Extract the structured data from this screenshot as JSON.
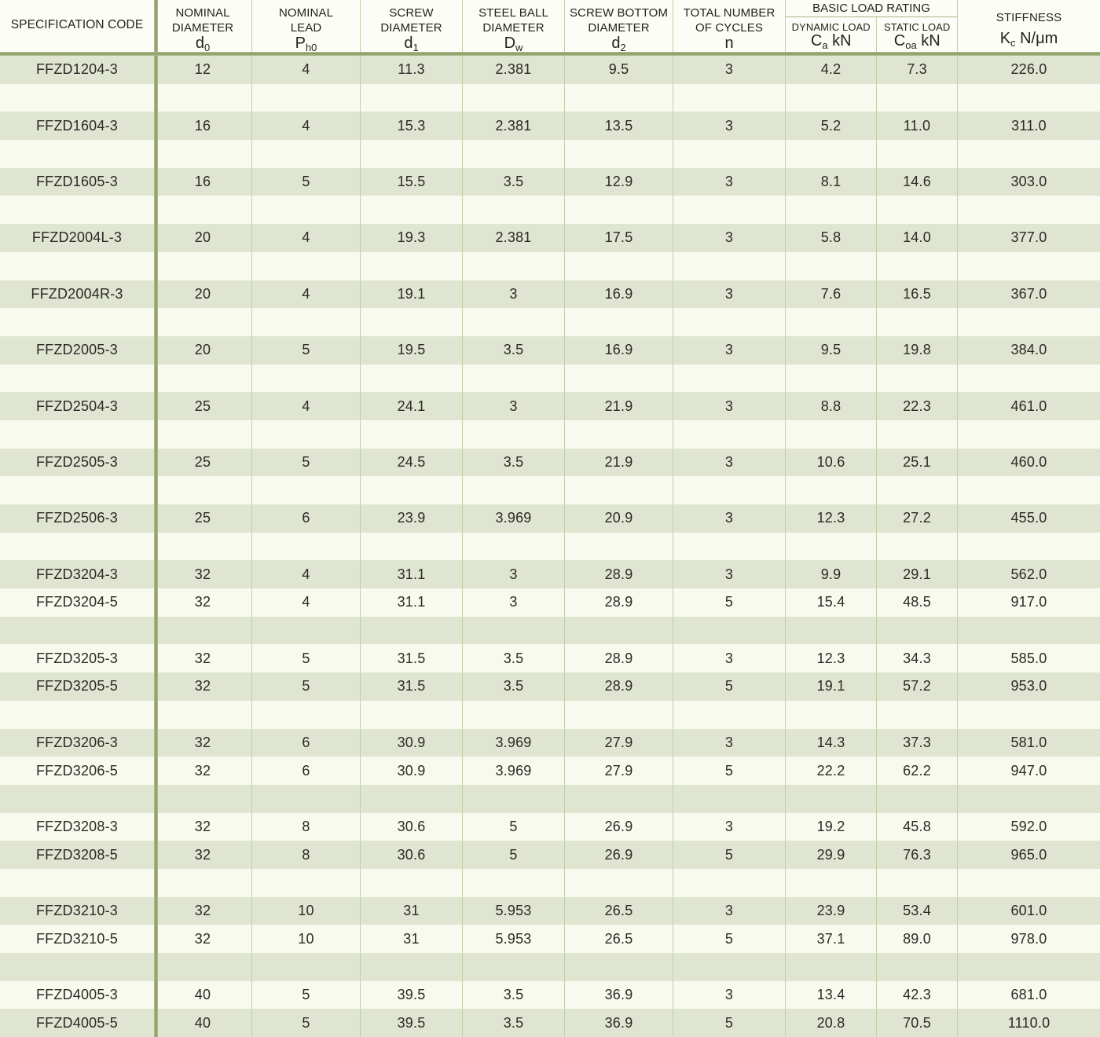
{
  "colors": {
    "row_green": "#dfe5d1",
    "row_cream": "#f9faef",
    "thin_divider": "#c3cfa9",
    "thick_line": "#87995e",
    "text": "#2b2a24"
  },
  "table": {
    "header": {
      "col1": "SPECIFICATION CODE",
      "col2": {
        "line1": "NOMINAL",
        "line2": "DIAMETER",
        "sym": "d",
        "sub": "0",
        "suffix": ""
      },
      "col3": {
        "line1": "NOMINAL",
        "line2": "LEAD",
        "sym": "P",
        "sub": "h0",
        "suffix": ""
      },
      "col4": {
        "line1": "SCREW",
        "line2": "DIAMETER",
        "sym": "d",
        "sub": "1",
        "suffix": ""
      },
      "col5": {
        "line1": "STEEL BALL",
        "line2": "DIAMETER",
        "sym": "D",
        "sub": "w",
        "suffix": ""
      },
      "col6": {
        "line1": "SCREW BOTTOM",
        "line2": "DIAMETER",
        "sym": "d",
        "sub": "2",
        "suffix": ""
      },
      "col7": {
        "line1": "TOTAL NUMBER",
        "line2": "OF CYCLES",
        "sym": "n",
        "sub": "",
        "suffix": ""
      },
      "group": {
        "label": "BASIC LOAD RATING",
        "dynamic": {
          "line1": "DYNAMIC LOAD",
          "sym": "C",
          "sub": "a",
          "suffix": " kN"
        },
        "static": {
          "line1": "STATIC LOAD",
          "sym": "C",
          "sub": "oa",
          "suffix": " kN"
        }
      },
      "col10": {
        "line1": "STIFFNESS",
        "sym": "K",
        "sub": "c",
        "suffix": " N/μm"
      }
    },
    "rows": [
      {
        "cells": [
          "FFZD1204-3",
          "12",
          "4",
          "11.3",
          "2.381",
          "9.5",
          "3",
          "4.2",
          "7.3",
          "226.0"
        ]
      },
      {
        "cells": []
      },
      {
        "cells": [
          "FFZD1604-3",
          "16",
          "4",
          "15.3",
          "2.381",
          "13.5",
          "3",
          "5.2",
          "11.0",
          "311.0"
        ]
      },
      {
        "cells": []
      },
      {
        "cells": [
          "FFZD1605-3",
          "16",
          "5",
          "15.5",
          "3.5",
          "12.9",
          "3",
          "8.1",
          "14.6",
          "303.0"
        ]
      },
      {
        "cells": []
      },
      {
        "cells": [
          "FFZD2004L-3",
          "20",
          "4",
          "19.3",
          "2.381",
          "17.5",
          "3",
          "5.8",
          "14.0",
          "377.0"
        ]
      },
      {
        "cells": []
      },
      {
        "cells": [
          "FFZD2004R-3",
          "20",
          "4",
          "19.1",
          "3",
          "16.9",
          "3",
          "7.6",
          "16.5",
          "367.0"
        ]
      },
      {
        "cells": []
      },
      {
        "cells": [
          "FFZD2005-3",
          "20",
          "5",
          "19.5",
          "3.5",
          "16.9",
          "3",
          "9.5",
          "19.8",
          "384.0"
        ]
      },
      {
        "cells": []
      },
      {
        "cells": [
          "FFZD2504-3",
          "25",
          "4",
          "24.1",
          "3",
          "21.9",
          "3",
          "8.8",
          "22.3",
          "461.0"
        ]
      },
      {
        "cells": []
      },
      {
        "cells": [
          "FFZD2505-3",
          "25",
          "5",
          "24.5",
          "3.5",
          "21.9",
          "3",
          "10.6",
          "25.1",
          "460.0"
        ]
      },
      {
        "cells": []
      },
      {
        "cells": [
          "FFZD2506-3",
          "25",
          "6",
          "23.9",
          "3.969",
          "20.9",
          "3",
          "12.3",
          "27.2",
          "455.0"
        ]
      },
      {
        "cells": []
      },
      {
        "cells": [
          "FFZD3204-3",
          "32",
          "4",
          "31.1",
          "3",
          "28.9",
          "3",
          "9.9",
          "29.1",
          "562.0"
        ]
      },
      {
        "cells": [
          "FFZD3204-5",
          "32",
          "4",
          "31.1",
          "3",
          "28.9",
          "5",
          "15.4",
          "48.5",
          "917.0"
        ]
      },
      {
        "cells": []
      },
      {
        "cells": [
          "FFZD3205-3",
          "32",
          "5",
          "31.5",
          "3.5",
          "28.9",
          "3",
          "12.3",
          "34.3",
          "585.0"
        ]
      },
      {
        "cells": [
          "FFZD3205-5",
          "32",
          "5",
          "31.5",
          "3.5",
          "28.9",
          "5",
          "19.1",
          "57.2",
          "953.0"
        ]
      },
      {
        "cells": []
      },
      {
        "cells": [
          "FFZD3206-3",
          "32",
          "6",
          "30.9",
          "3.969",
          "27.9",
          "3",
          "14.3",
          "37.3",
          "581.0"
        ]
      },
      {
        "cells": [
          "FFZD3206-5",
          "32",
          "6",
          "30.9",
          "3.969",
          "27.9",
          "5",
          "22.2",
          "62.2",
          "947.0"
        ]
      },
      {
        "cells": []
      },
      {
        "cells": [
          "FFZD3208-3",
          "32",
          "8",
          "30.6",
          "5",
          "26.9",
          "3",
          "19.2",
          "45.8",
          "592.0"
        ]
      },
      {
        "cells": [
          "FFZD3208-5",
          "32",
          "8",
          "30.6",
          "5",
          "26.9",
          "5",
          "29.9",
          "76.3",
          "965.0"
        ]
      },
      {
        "cells": []
      },
      {
        "cells": [
          "FFZD3210-3",
          "32",
          "10",
          "31",
          "5.953",
          "26.5",
          "3",
          "23.9",
          "53.4",
          "601.0"
        ]
      },
      {
        "cells": [
          "FFZD3210-5",
          "32",
          "10",
          "31",
          "5.953",
          "26.5",
          "5",
          "37.1",
          "89.0",
          "978.0"
        ]
      },
      {
        "cells": []
      },
      {
        "cells": [
          "FFZD4005-3",
          "40",
          "5",
          "39.5",
          "3.5",
          "36.9",
          "3",
          "13.4",
          "42.3",
          "681.0"
        ]
      },
      {
        "cells": [
          "FFZD4005-5",
          "40",
          "5",
          "39.5",
          "3.5",
          "36.9",
          "5",
          "20.8",
          "70.5",
          "1110.0"
        ]
      }
    ]
  }
}
